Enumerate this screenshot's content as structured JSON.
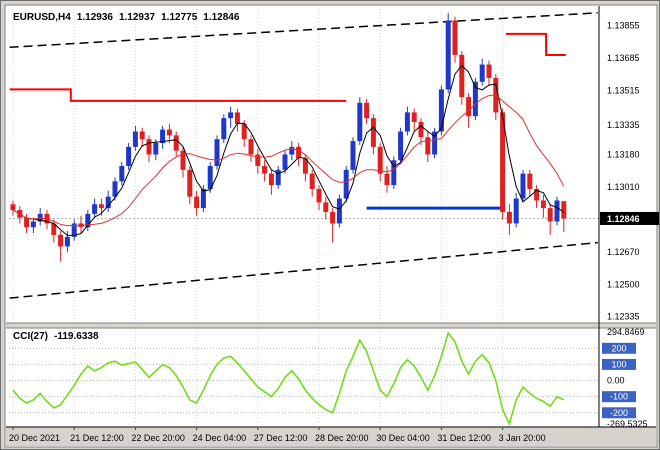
{
  "header": {
    "symbol": "EURUSD,H4",
    "open": "1.12936",
    "high": "1.12937",
    "low": "1.12775",
    "close": "1.12846"
  },
  "price_axis": {
    "labels": [
      {
        "text": "1.13855",
        "value": 1.13855
      },
      {
        "text": "1.13685",
        "value": 1.13685
      },
      {
        "text": "1.13515",
        "value": 1.13515
      },
      {
        "text": "1.13335",
        "value": 1.13335
      },
      {
        "text": "1.13180",
        "value": 1.1318
      },
      {
        "text": "1.13010",
        "value": 1.1301
      },
      {
        "text": "1.12670",
        "value": 1.1267
      },
      {
        "text": "1.12500",
        "value": 1.125
      },
      {
        "text": "1.12335",
        "value": 1.12335
      }
    ],
    "current": {
      "text": "1.12846",
      "value": 1.12846
    }
  },
  "time_axis": {
    "labels": [
      "20 Dec 2021",
      "21 Dec 12:00",
      "22 Dec 20:00",
      "24 Dec 04:00",
      "27 Dec 12:00",
      "28 Dec 20:00",
      "30 Dec 04:00",
      "31 Dec 12:00",
      "3 Jan 20:00"
    ],
    "tick_indices": [
      0,
      9,
      18,
      27,
      36,
      45,
      54,
      63,
      72
    ]
  },
  "cci": {
    "label": "CCI(27)",
    "value": "-119.6338",
    "axis": {
      "max": {
        "text": "294.8469",
        "value": 294.8469
      },
      "min": {
        "text": "-269.5325",
        "value": -269.5325
      },
      "levels": [
        {
          "text": "200",
          "value": 200,
          "badge": true
        },
        {
          "text": "100",
          "value": 100,
          "badge": true
        },
        {
          "text": "0.00",
          "value": 0,
          "badge": false
        },
        {
          "text": "-100",
          "value": -100,
          "badge": true
        },
        {
          "text": "-200",
          "value": -200,
          "badge": true
        }
      ]
    }
  },
  "chart_data": {
    "type": "candlestick",
    "title": "EURUSD H4 with CCI(27)",
    "ylim": [
      1.123,
      1.1394
    ],
    "candles": [
      [
        1.1292,
        1.1294,
        1.1286,
        1.1289
      ],
      [
        1.1289,
        1.1291,
        1.1282,
        1.1285
      ],
      [
        1.1285,
        1.1287,
        1.1277,
        1.128
      ],
      [
        1.128,
        1.1285,
        1.1277,
        1.1283
      ],
      [
        1.1283,
        1.129,
        1.1281,
        1.1287
      ],
      [
        1.1287,
        1.1289,
        1.1279,
        1.1282
      ],
      [
        1.1282,
        1.1284,
        1.1272,
        1.1276
      ],
      [
        1.1276,
        1.1278,
        1.1262,
        1.127
      ],
      [
        1.127,
        1.1278,
        1.1267,
        1.1275
      ],
      [
        1.1275,
        1.1284,
        1.1273,
        1.1282
      ],
      [
        1.1282,
        1.1286,
        1.1277,
        1.128
      ],
      [
        1.128,
        1.1289,
        1.1278,
        1.1287
      ],
      [
        1.1287,
        1.1295,
        1.1285,
        1.1292
      ],
      [
        1.1292,
        1.1295,
        1.1286,
        1.129
      ],
      [
        1.129,
        1.1299,
        1.1288,
        1.1296
      ],
      [
        1.1296,
        1.1306,
        1.1294,
        1.1304
      ],
      [
        1.1304,
        1.1314,
        1.1302,
        1.1312
      ],
      [
        1.1312,
        1.1324,
        1.131,
        1.1322
      ],
      [
        1.1322,
        1.1333,
        1.132,
        1.133
      ],
      [
        1.133,
        1.1332,
        1.1322,
        1.1326
      ],
      [
        1.1326,
        1.1328,
        1.1314,
        1.1318
      ],
      [
        1.1318,
        1.1326,
        1.1315,
        1.1324
      ],
      [
        1.1324,
        1.1333,
        1.1321,
        1.1331
      ],
      [
        1.1331,
        1.1334,
        1.1324,
        1.1328
      ],
      [
        1.1328,
        1.133,
        1.1317,
        1.132
      ],
      [
        1.132,
        1.1322,
        1.1306,
        1.131
      ],
      [
        1.131,
        1.1312,
        1.1292,
        1.1296
      ],
      [
        1.1296,
        1.1299,
        1.1286,
        1.129
      ],
      [
        1.129,
        1.1302,
        1.1288,
        1.13
      ],
      [
        1.13,
        1.1314,
        1.1298,
        1.1312
      ],
      [
        1.1312,
        1.1328,
        1.131,
        1.1326
      ],
      [
        1.1326,
        1.1339,
        1.1324,
        1.1337
      ],
      [
        1.1337,
        1.1343,
        1.1332,
        1.134
      ],
      [
        1.134,
        1.1342,
        1.133,
        1.1334
      ],
      [
        1.1334,
        1.1336,
        1.1322,
        1.1326
      ],
      [
        1.1326,
        1.1328,
        1.1314,
        1.1318
      ],
      [
        1.1318,
        1.1321,
        1.1308,
        1.1312
      ],
      [
        1.1312,
        1.1315,
        1.1304,
        1.1308
      ],
      [
        1.1308,
        1.131,
        1.1297,
        1.1302
      ],
      [
        1.1302,
        1.1312,
        1.13,
        1.131
      ],
      [
        1.131,
        1.132,
        1.1308,
        1.1318
      ],
      [
        1.1318,
        1.1325,
        1.1315,
        1.1322
      ],
      [
        1.1322,
        1.1324,
        1.1312,
        1.1316
      ],
      [
        1.1316,
        1.1318,
        1.1304,
        1.1308
      ],
      [
        1.1308,
        1.131,
        1.1296,
        1.13
      ],
      [
        1.13,
        1.1302,
        1.1289,
        1.1293
      ],
      [
        1.1293,
        1.1296,
        1.1284,
        1.1288
      ],
      [
        1.1288,
        1.129,
        1.1272,
        1.1282
      ],
      [
        1.1282,
        1.1297,
        1.128,
        1.1295
      ],
      [
        1.1295,
        1.1312,
        1.1293,
        1.131
      ],
      [
        1.131,
        1.1327,
        1.1308,
        1.1325
      ],
      [
        1.1325,
        1.1348,
        1.1323,
        1.1345
      ],
      [
        1.1345,
        1.1347,
        1.1334,
        1.1337
      ],
      [
        1.1337,
        1.1339,
        1.1318,
        1.1322
      ],
      [
        1.1322,
        1.1324,
        1.1304,
        1.1308
      ],
      [
        1.1308,
        1.1312,
        1.1298,
        1.1302
      ],
      [
        1.1302,
        1.1317,
        1.13,
        1.1315
      ],
      [
        1.1315,
        1.1332,
        1.1313,
        1.133
      ],
      [
        1.133,
        1.1343,
        1.1328,
        1.134
      ],
      [
        1.134,
        1.1342,
        1.133,
        1.1335
      ],
      [
        1.1335,
        1.1337,
        1.1323,
        1.1327
      ],
      [
        1.1327,
        1.133,
        1.1314,
        1.1318
      ],
      [
        1.1318,
        1.1332,
        1.1316,
        1.133
      ],
      [
        1.133,
        1.1354,
        1.1328,
        1.1352
      ],
      [
        1.1352,
        1.1392,
        1.135,
        1.1388
      ],
      [
        1.1388,
        1.139,
        1.1366,
        1.137
      ],
      [
        1.137,
        1.1372,
        1.1344,
        1.1348
      ],
      [
        1.1348,
        1.135,
        1.1332,
        1.1338
      ],
      [
        1.1338,
        1.1358,
        1.1336,
        1.1356
      ],
      [
        1.1356,
        1.1368,
        1.1354,
        1.1365
      ],
      [
        1.1365,
        1.1367,
        1.1354,
        1.1358
      ],
      [
        1.1358,
        1.136,
        1.1336,
        1.134
      ],
      [
        1.134,
        1.1342,
        1.1284,
        1.1288
      ],
      [
        1.1288,
        1.1292,
        1.1276,
        1.1282
      ],
      [
        1.1282,
        1.1298,
        1.128,
        1.1295
      ],
      [
        1.1295,
        1.131,
        1.1293,
        1.1308
      ],
      [
        1.1308,
        1.131,
        1.1296,
        1.13
      ],
      [
        1.13,
        1.1302,
        1.129,
        1.1294
      ],
      [
        1.1294,
        1.1297,
        1.1285,
        1.129
      ],
      [
        1.129,
        1.1292,
        1.1276,
        1.1283
      ],
      [
        1.1283,
        1.1296,
        1.1281,
        1.1294
      ],
      [
        1.12936,
        1.12937,
        1.12775,
        1.12846
      ]
    ],
    "cci_values": [
      -60,
      -110,
      -140,
      -120,
      -80,
      -130,
      -170,
      -150,
      -90,
      -30,
      40,
      90,
      60,
      80,
      110,
      120,
      95,
      105,
      115,
      70,
      20,
      60,
      100,
      80,
      30,
      -40,
      -120,
      -140,
      -60,
      30,
      100,
      140,
      150,
      110,
      60,
      10,
      -40,
      -70,
      -100,
      -50,
      20,
      60,
      10,
      -60,
      -110,
      -150,
      -180,
      -200,
      -80,
      60,
      150,
      250,
      180,
      60,
      -60,
      -100,
      -20,
      80,
      130,
      90,
      20,
      -60,
      30,
      150,
      294.8469,
      240,
      120,
      40,
      120,
      160,
      110,
      0,
      -180,
      -269.5325,
      -120,
      -40,
      -80,
      -110,
      -130,
      -160,
      -100,
      -119.6338
    ],
    "overlays": {
      "ma_fast": {
        "type": "sma",
        "period": 4,
        "color": "#000000"
      },
      "ma_slow": {
        "type": "sma",
        "period": 12,
        "color": "#e03030"
      },
      "resistance_segments": [
        [
          [
            -0.5,
            1.1352
          ],
          [
            8.5,
            1.1352
          ],
          [
            8.5,
            1.1346
          ],
          [
            49,
            1.1346
          ]
        ],
        [
          [
            72.5,
            1.1381
          ],
          [
            78.4,
            1.1381
          ],
          [
            78.4,
            1.137
          ],
          [
            81.3,
            1.137
          ]
        ]
      ],
      "support_segment": [
        [
          52,
          1.129
        ],
        [
          71.8,
          1.129
        ]
      ],
      "channel_upper": [
        [
          -0.5,
          1.1374
        ],
        [
          86,
          1.1392
        ]
      ],
      "channel_lower": [
        [
          -0.5,
          1.1243
        ],
        [
          86,
          1.1272
        ]
      ]
    },
    "colors": {
      "up": "#2038c8",
      "down": "#e02020",
      "wick_up": "#2038c8",
      "wick_down": "#e02020",
      "cci_line": "#70dd18",
      "flat_line": "#ff0000",
      "support_line": "#0038d0",
      "badge": "#3b63c4",
      "grid": "#d8d8d8",
      "current_line": "#b0b0b0"
    }
  }
}
